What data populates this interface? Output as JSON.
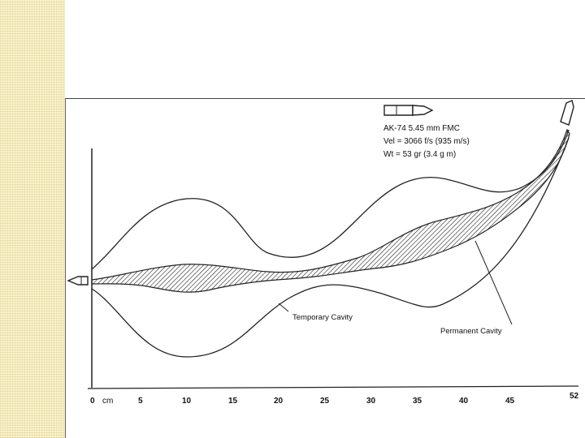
{
  "slide": {
    "accent_strip_color": "#fbf4cf"
  },
  "figure": {
    "cartridge_label": "AK-74  5.45 mm FMC",
    "velocity_label": "Vel = 3066 f/s  (935 m/s)",
    "weight_label": "Wt = 53 gr (3.4 g m)",
    "temporary_cavity_label": "Temporary Cavity",
    "permanent_cavity_label": "Permanent Cavity",
    "axis_unit": "cm",
    "axis_ticks": [
      "0",
      "5",
      "10",
      "15",
      "20",
      "25",
      "30",
      "35",
      "40",
      "45",
      "52"
    ],
    "ink_color": "#222222"
  }
}
